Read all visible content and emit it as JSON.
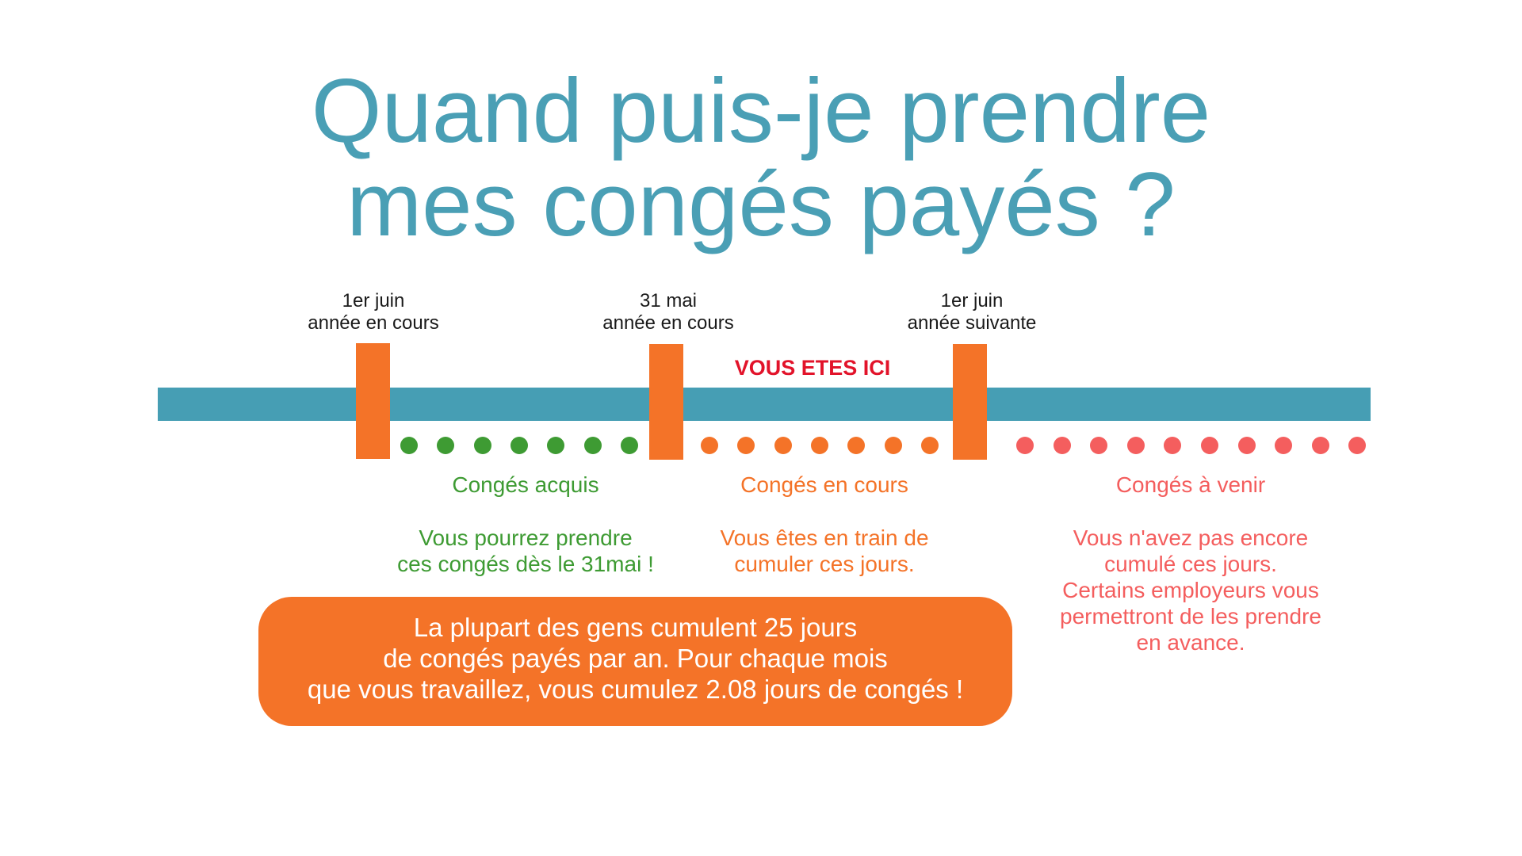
{
  "title": {
    "line1": "Quand puis-je prendre",
    "line2": "mes congés payés ?"
  },
  "dates": [
    {
      "line1": "1er juin",
      "line2": "année en cours"
    },
    {
      "line1": "31 mai",
      "line2": "année en cours"
    },
    {
      "line1": "1er juin",
      "line2": "année suivante"
    }
  ],
  "current_position_label": "VOUS ETES ICI",
  "sections": [
    {
      "heading": "Congés acquis",
      "desc": [
        "Vous pourrez prendre",
        "ces congés dès le 31mai !"
      ],
      "dot_count": 7,
      "color": "#3e9b33"
    },
    {
      "heading": "Congés en cours",
      "desc": [
        "Vous êtes en train de",
        "cumuler ces jours."
      ],
      "dot_count": 7,
      "color": "#f47328"
    },
    {
      "heading": "Congés à venir",
      "desc": [
        "Vous n'avez pas encore",
        "cumulé ces jours.",
        "Certains employeurs vous",
        "permettront de les prendre",
        "en avance."
      ],
      "dot_count": 10,
      "color": "#f45e5e"
    }
  ],
  "note": {
    "line1": "La plupart des gens cumulent 25 jours",
    "line2": "de congés payés par an. Pour chaque mois",
    "line3": "que vous travaillez, vous cumulez 2.08 jours de congés !"
  },
  "colors": {
    "title": "#4a9fb5",
    "timeline": "#469eb4",
    "marker": "#f47328",
    "current_label": "#e2132a",
    "note_background": "#f47328"
  }
}
